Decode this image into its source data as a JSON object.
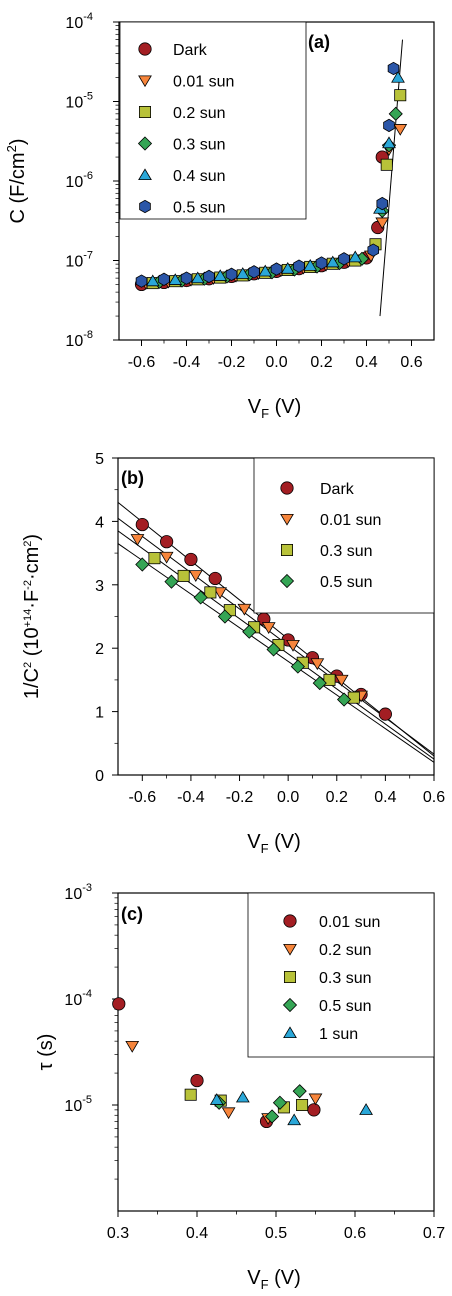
{
  "colors": {
    "dark_red": "#a31e23",
    "orange": "#f7853b",
    "olive": "#b8c239",
    "green": "#35a555",
    "cyan": "#2aa7d8",
    "blue": "#2b56a8"
  },
  "chart_data": [
    {
      "type": "scatter",
      "panel_label": "(a)",
      "xlabel_main": "V",
      "xlabel_sub": "F",
      "xlabel_unit": " (V)",
      "ylabel_main": "C (F/cm",
      "ylabel_sup": "2",
      "ylabel_end": ")",
      "xlim": [
        -0.7,
        0.7
      ],
      "yscale": "log",
      "ylim": [
        1e-08,
        0.0001
      ],
      "xticks": [
        "-0.6",
        "-0.4",
        "-0.2",
        "0.0",
        "0.2",
        "0.4",
        "0.6"
      ],
      "yticks": [
        {
          "base": "10",
          "exp": "-8",
          "value": 1e-08
        },
        {
          "base": "10",
          "exp": "-7",
          "value": 1e-07
        },
        {
          "base": "10",
          "exp": "-6",
          "value": 1e-06
        },
        {
          "base": "10",
          "exp": "-5",
          "value": 1e-05
        },
        {
          "base": "10",
          "exp": "-4",
          "value": 0.0001
        }
      ],
      "legend_position": "top-left",
      "series": [
        {
          "name": "Dark",
          "marker": "circle",
          "color": "#a31e23",
          "x": [
            -0.6,
            -0.5,
            -0.4,
            -0.3,
            -0.2,
            -0.1,
            0.0,
            0.1,
            0.2,
            0.3,
            0.4,
            0.45,
            0.47
          ],
          "y": [
            5e-08,
            5.3e-08,
            5.6e-08,
            5.9e-08,
            6.3e-08,
            6.8e-08,
            7.3e-08,
            7.9e-08,
            8.6e-08,
            9.5e-08,
            1.08e-07,
            2.6e-07,
            2e-06
          ]
        },
        {
          "name": "0.01 sun",
          "marker": "triangle-down",
          "color": "#f7853b",
          "x": [
            -0.58,
            -0.48,
            -0.38,
            -0.28,
            -0.18,
            -0.08,
            0.02,
            0.12,
            0.22,
            0.32,
            0.42,
            0.47,
            0.5,
            0.55
          ],
          "y": [
            5.2e-08,
            5.4e-08,
            5.7e-08,
            6e-08,
            6.4e-08,
            6.9e-08,
            7.5e-08,
            8.1e-08,
            8.8e-08,
            9.8e-08,
            1.15e-07,
            3e-07,
            2.5e-06,
            4.5e-06
          ]
        },
        {
          "name": "0.2 sun",
          "marker": "square",
          "color": "#b8c239",
          "x": [
            -0.55,
            -0.45,
            -0.35,
            -0.25,
            -0.15,
            -0.05,
            0.05,
            0.15,
            0.25,
            0.35,
            0.44,
            0.49,
            0.55
          ],
          "y": [
            5.2e-08,
            5.5e-08,
            5.8e-08,
            6.1e-08,
            6.5e-08,
            7e-08,
            7.6e-08,
            8.3e-08,
            9.1e-08,
            1e-07,
            1.6e-07,
            1.6e-06,
            1.2e-05
          ]
        },
        {
          "name": "0.3 sun",
          "marker": "diamond",
          "color": "#35a555",
          "x": [
            -0.52,
            -0.42,
            -0.32,
            -0.22,
            -0.12,
            -0.02,
            0.08,
            0.18,
            0.28,
            0.38,
            0.47,
            0.5,
            0.53
          ],
          "y": [
            5.4e-08,
            5.6e-08,
            5.9e-08,
            6.3e-08,
            6.7e-08,
            7.1e-08,
            7.7e-08,
            8.4e-08,
            9.3e-08,
            1.05e-07,
            4.2e-07,
            2.8e-06,
            7e-06
          ]
        },
        {
          "name": "0.4 sun",
          "marker": "triangle-up",
          "color": "#2aa7d8",
          "x": [
            -0.55,
            -0.45,
            -0.35,
            -0.25,
            -0.15,
            -0.05,
            0.05,
            0.15,
            0.25,
            0.35,
            0.46,
            0.5,
            0.54
          ],
          "y": [
            5.5e-08,
            5.7e-08,
            6e-08,
            6.4e-08,
            6.8e-08,
            7.3e-08,
            7.9e-08,
            8.6e-08,
            9.5e-08,
            1.1e-07,
            4.5e-07,
            3e-06,
            2e-05
          ]
        },
        {
          "name": "0.5 sun",
          "marker": "hexagon",
          "color": "#2b56a8",
          "x": [
            -0.6,
            -0.5,
            -0.4,
            -0.3,
            -0.2,
            -0.1,
            0.0,
            0.1,
            0.2,
            0.3,
            0.43,
            0.47,
            0.5,
            0.52
          ],
          "y": [
            5.5e-08,
            5.8e-08,
            6e-08,
            6.3e-08,
            6.7e-08,
            7.2e-08,
            7.8e-08,
            8.5e-08,
            9.3e-08,
            1.05e-07,
            1.35e-07,
            5.2e-07,
            5e-06,
            2.6e-05
          ]
        }
      ],
      "fit_lines": [
        {
          "x": [
            -0.62,
            0.43
          ],
          "y": [
            5e-08,
            1.2e-07
          ]
        },
        {
          "x": [
            0.46,
            0.56
          ],
          "y": [
            2e-08,
            6e-05
          ]
        }
      ]
    },
    {
      "type": "scatter",
      "panel_label": "(b)",
      "xlabel_main": "V",
      "xlabel_sub": "F",
      "xlabel_unit": " (V)",
      "ylabel_main": "1/C",
      "ylabel_sup": "2",
      "ylabel_mid": " (10",
      "ylabel_sup2": "+14",
      "ylabel_mid2": "·F",
      "ylabel_sup3": "-2",
      "ylabel_mid3": "·cm",
      "ylabel_sup4": "2",
      "ylabel_end": ")",
      "xlim": [
        -0.7,
        0.6
      ],
      "ylim": [
        0,
        5
      ],
      "xticks": [
        "-0.6",
        "-0.4",
        "-0.2",
        "0.0",
        "0.2",
        "0.4",
        "0.6"
      ],
      "yticks": [
        "0",
        "1",
        "2",
        "3",
        "4",
        "5"
      ],
      "legend_position": "top-right",
      "series": [
        {
          "name": "Dark",
          "marker": "circle",
          "color": "#a31e23",
          "x": [
            -0.6,
            -0.5,
            -0.4,
            -0.3,
            -0.1,
            0.0,
            0.1,
            0.2,
            0.3,
            0.4
          ],
          "y": [
            3.95,
            3.68,
            3.4,
            3.1,
            2.46,
            2.13,
            1.85,
            1.56,
            1.27,
            0.96
          ]
        },
        {
          "name": "0.01 sun",
          "marker": "triangle-down",
          "color": "#f7853b",
          "x": [
            -0.62,
            -0.5,
            -0.38,
            -0.28,
            -0.18,
            -0.08,
            0.02,
            0.12,
            0.22,
            0.3
          ],
          "y": [
            3.72,
            3.44,
            3.15,
            2.88,
            2.62,
            2.33,
            2.05,
            1.76,
            1.5,
            1.25
          ]
        },
        {
          "name": "0.3 sun",
          "marker": "square",
          "color": "#b8c239",
          "x": [
            -0.55,
            -0.43,
            -0.32,
            -0.24,
            -0.14,
            -0.04,
            0.06,
            0.17,
            0.27
          ],
          "y": [
            3.42,
            3.14,
            2.88,
            2.6,
            2.33,
            2.05,
            1.77,
            1.5,
            1.22
          ]
        },
        {
          "name": "0.5 sun",
          "marker": "diamond",
          "color": "#35a555",
          "x": [
            -0.6,
            -0.48,
            -0.36,
            -0.26,
            -0.16,
            -0.06,
            0.04,
            0.13,
            0.23
          ],
          "y": [
            3.32,
            3.05,
            2.8,
            2.5,
            2.26,
            1.98,
            1.71,
            1.45,
            1.19
          ]
        }
      ],
      "fit_lines": [
        {
          "x": [
            -0.7,
            0.6
          ],
          "y": [
            4.3,
            0.3
          ]
        },
        {
          "x": [
            -0.7,
            0.6
          ],
          "y": [
            4.05,
            0.33
          ]
        },
        {
          "x": [
            -0.7,
            0.6
          ],
          "y": [
            3.85,
            0.25
          ]
        },
        {
          "x": [
            -0.7,
            0.6
          ],
          "y": [
            3.65,
            0.2
          ]
        }
      ]
    },
    {
      "type": "scatter",
      "panel_label": "(c)",
      "xlabel_main": "V",
      "xlabel_sub": "F",
      "xlabel_unit": " (V)",
      "ylabel_main": "τ (s)",
      "xlim": [
        0.3,
        0.7
      ],
      "yscale": "log",
      "ylim": [
        1e-06,
        0.001
      ],
      "xticks": [
        "0.3",
        "0.4",
        "0.5",
        "0.6",
        "0.7"
      ],
      "yticks": [
        {
          "base": "10",
          "exp": "-5",
          "value": 1e-05
        },
        {
          "base": "10",
          "exp": "-4",
          "value": 0.0001
        },
        {
          "base": "10",
          "exp": "-3",
          "value": 0.001
        }
      ],
      "legend_position": "top-right",
      "series": [
        {
          "name": "0.01 sun",
          "marker": "circle",
          "color": "#a31e23",
          "x": [
            0.301,
            0.4,
            0.488,
            0.548
          ],
          "y": [
            9e-05,
            1.7e-05,
            7e-06,
            9e-06
          ]
        },
        {
          "name": "0.2 sun",
          "marker": "triangle-down",
          "color": "#f7853b",
          "x": [
            0.318,
            0.44,
            0.49,
            0.55
          ],
          "y": [
            3.6e-05,
            8.5e-06,
            7.5e-06,
            1.15e-05
          ]
        },
        {
          "name": "0.3 sun",
          "marker": "square",
          "color": "#b8c239",
          "x": [
            0.392,
            0.43,
            0.51,
            0.533
          ],
          "y": [
            1.25e-05,
            1.1e-05,
            9.5e-06,
            1e-05
          ]
        },
        {
          "name": "0.5 sun",
          "marker": "diamond",
          "color": "#35a555",
          "x": [
            0.428,
            0.495,
            0.505,
            0.53
          ],
          "y": [
            1.05e-05,
            7.8e-06,
            1.05e-05,
            1.35e-05
          ]
        },
        {
          "name": "1 sun",
          "marker": "triangle-up",
          "color": "#2aa7d8",
          "x": [
            0.425,
            0.458,
            0.523,
            0.614
          ],
          "y": [
            1.12e-05,
            1.18e-05,
            7.2e-06,
            9e-06
          ]
        }
      ]
    }
  ]
}
